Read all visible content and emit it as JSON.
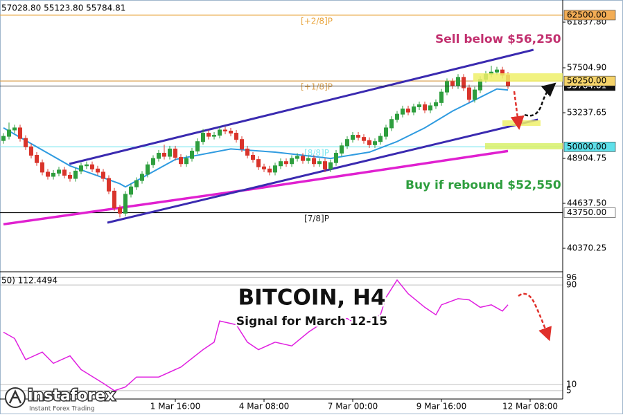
{
  "chart_data": {
    "type": "candlestick",
    "header": "57028.80 55123.80 55784.81",
    "title": "BITCOIN, H4",
    "subtitle": "Signal for March 12-15",
    "up_color": "#2e9e3e",
    "down_color": "#d9342b",
    "open": [
      50600,
      51000,
      51600,
      51800,
      50800,
      50000,
      49200,
      48500,
      47600,
      47200,
      47500,
      47800,
      47300,
      47000,
      47700,
      48200,
      48300,
      47900,
      47600,
      47000,
      45800,
      44200,
      43700,
      45500,
      46200,
      46800,
      47400,
      48300,
      48900,
      49400,
      49100,
      49800,
      49000,
      48400,
      48900,
      49600,
      50500,
      51300,
      51000,
      51100,
      51600,
      51500,
      51300,
      50700,
      49800,
      49200,
      48800,
      48100,
      47900,
      47600,
      48200,
      48600,
      48400,
      48900,
      49100,
      48700,
      48900,
      48400,
      48600,
      47900,
      48500,
      49400,
      50100,
      50700,
      51100,
      50900,
      50600,
      50200,
      50500,
      51000,
      51800,
      52600,
      53100,
      53600,
      53300,
      53800,
      54000,
      53500,
      53900,
      54200,
      55200,
      56200,
      55800,
      56600,
      55600,
      54500,
      55400,
      56400,
      56900,
      57100,
      57300,
      56800
    ],
    "high": [
      51300,
      52300,
      52100,
      52100,
      51100,
      50300,
      49500,
      48800,
      47900,
      47800,
      48100,
      48100,
      47600,
      48000,
      48500,
      48600,
      48600,
      48200,
      47900,
      47300,
      46100,
      44500,
      45800,
      46500,
      47100,
      47700,
      48600,
      49200,
      49700,
      50200,
      50100,
      50100,
      49300,
      49200,
      49900,
      50800,
      51700,
      51600,
      51400,
      51900,
      51900,
      51800,
      51600,
      51000,
      50100,
      49500,
      49100,
      48400,
      48200,
      48500,
      48900,
      48900,
      49200,
      49400,
      49400,
      49200,
      49200,
      48900,
      48900,
      48800,
      49700,
      50400,
      51000,
      51400,
      51400,
      51200,
      50900,
      50800,
      51300,
      52100,
      52900,
      53400,
      53900,
      53900,
      54100,
      54300,
      54300,
      54200,
      54500,
      55500,
      56500,
      56500,
      56900,
      56900,
      55900,
      55700,
      56700,
      57200,
      57700,
      57600,
      57600,
      57100
    ],
    "low": [
      50300,
      50700,
      51300,
      50500,
      49700,
      48900,
      48200,
      47300,
      46900,
      46900,
      47200,
      47000,
      46700,
      46700,
      47400,
      47900,
      47600,
      47300,
      46700,
      45500,
      43900,
      43300,
      43400,
      45200,
      45900,
      46500,
      47100,
      48000,
      48600,
      48800,
      48800,
      48700,
      48100,
      48100,
      48600,
      49300,
      50200,
      50700,
      50700,
      50800,
      51200,
      51000,
      50400,
      49500,
      48900,
      48500,
      47800,
      47600,
      47300,
      47300,
      47900,
      48100,
      48100,
      48600,
      48400,
      48400,
      48100,
      48100,
      47600,
      47600,
      48200,
      49100,
      49800,
      50400,
      50600,
      50300,
      49900,
      49900,
      50200,
      50700,
      51500,
      52300,
      52800,
      53000,
      53000,
      53500,
      53200,
      53200,
      53600,
      53900,
      54900,
      55500,
      55500,
      55300,
      54200,
      54200,
      55100,
      56100,
      56600,
      56800,
      56500,
      55500
    ],
    "close": [
      51000,
      51600,
      51800,
      50800,
      50000,
      49200,
      48500,
      47600,
      47200,
      47500,
      47800,
      47300,
      47000,
      47700,
      48200,
      48300,
      47900,
      47600,
      47000,
      45800,
      44200,
      43700,
      45500,
      46200,
      46800,
      47400,
      48300,
      48900,
      49400,
      49100,
      49800,
      49000,
      48400,
      48900,
      49600,
      50500,
      51300,
      51000,
      51100,
      51600,
      51500,
      51300,
      50700,
      49800,
      49200,
      48800,
      48100,
      47900,
      47600,
      48200,
      48600,
      48400,
      48900,
      49100,
      48700,
      48900,
      48400,
      48600,
      47900,
      48500,
      49400,
      50100,
      50700,
      51100,
      50900,
      50600,
      50200,
      50500,
      51000,
      51800,
      52600,
      53100,
      53600,
      53300,
      53800,
      54000,
      53500,
      53900,
      54200,
      55200,
      56200,
      55800,
      56600,
      55600,
      54500,
      55400,
      56400,
      56900,
      57100,
      57300,
      56800,
      55780
    ],
    "xlim": [
      -0.625,
      100.875
    ],
    "xticks": [
      {
        "value": 31,
        "label": "1 Mar 16:00"
      },
      {
        "value": 47,
        "label": "4 Mar 08:00"
      },
      {
        "value": 63,
        "label": "7 Mar 00:00"
      },
      {
        "value": 79,
        "label": "9 Mar 16:00"
      },
      {
        "value": 95,
        "label": "12 Mar 08:00"
      }
    ],
    "ylim": [
      38140,
      63940
    ],
    "yticks": [
      {
        "value": 61837.8,
        "label": "61837.80"
      },
      {
        "value": 57504.9,
        "label": "57504.90"
      },
      53237.65,
      48904.75,
      {
        "value": 44637.5,
        "label": "44637.50"
      },
      40370.25
    ],
    "ma": {
      "color": "#2f9be0",
      "x": [
        0,
        12,
        21,
        22,
        31,
        41,
        49,
        54,
        59,
        66,
        71,
        76,
        81,
        86,
        89,
        91
      ],
      "values": [
        51800,
        48200,
        46500,
        46200,
        48800,
        49800,
        49500,
        49200,
        48900,
        49500,
        50500,
        51800,
        53400,
        54700,
        55500,
        55400
      ]
    },
    "ma2": {
      "color": "#e020d0",
      "x": [
        0,
        45,
        91
      ],
      "values": [
        42650,
        46000,
        49600
      ]
    },
    "channel": [
      {
        "color": "#3a2ab0",
        "x": [
          11.9,
          95.6
        ],
        "values": [
          48380,
          59212
        ]
      },
      {
        "color": "#3a2ab0",
        "x": [
          18.75,
          96.4
        ],
        "values": [
          42799,
          52581
        ]
      }
    ],
    "levels": [
      {
        "value": 62500,
        "label": "62500.00",
        "tag": "[+2/8]P",
        "color": "#e8a33a",
        "bg": "#f3ad55"
      },
      {
        "value": 56250,
        "label": "56250.00",
        "tag": "[+1/8]P",
        "color": "#d9a050",
        "bg": "#f5d36a"
      },
      {
        "value": 50000,
        "label": "50000.00",
        "tag": "[8/8]P",
        "color": "#7fe8f0",
        "bg": "#5fe0ea"
      },
      {
        "value": 43750,
        "label": "43750.00",
        "tag": "[7/8]P",
        "color": "#000000",
        "bg": "#ffffff"
      }
    ],
    "current": {
      "value": 55784.81,
      "label": "55784.81"
    },
    "sell_note": "Sell below $56,250",
    "buy_note": "Buy if rebound $52,550",
    "oscillator": {
      "header": "50) 112.4494",
      "color": "#e020e0",
      "x": [
        0,
        2,
        4,
        7,
        9,
        12,
        14,
        18,
        20,
        22,
        24,
        28,
        32,
        36,
        38,
        39,
        42,
        44,
        46,
        49,
        52,
        55,
        58,
        62,
        64,
        68,
        69,
        71,
        73,
        76,
        78,
        79,
        82,
        84,
        86,
        88,
        90,
        91
      ],
      "values": [
        52,
        47,
        30,
        36,
        27,
        33,
        22,
        11,
        5,
        8,
        16,
        16,
        24,
        38,
        44,
        61,
        58,
        44,
        38,
        44,
        41,
        52,
        61,
        63,
        58,
        66,
        80,
        94,
        83,
        72,
        66,
        74,
        79,
        78,
        72,
        74,
        69,
        74
      ],
      "ylim": [
        -1.7,
        100.6
      ],
      "yticks": [
        5,
        10,
        90,
        96
      ]
    }
  },
  "brand": {
    "name": "instaforex",
    "tagline": "Instant Forex Trading"
  }
}
